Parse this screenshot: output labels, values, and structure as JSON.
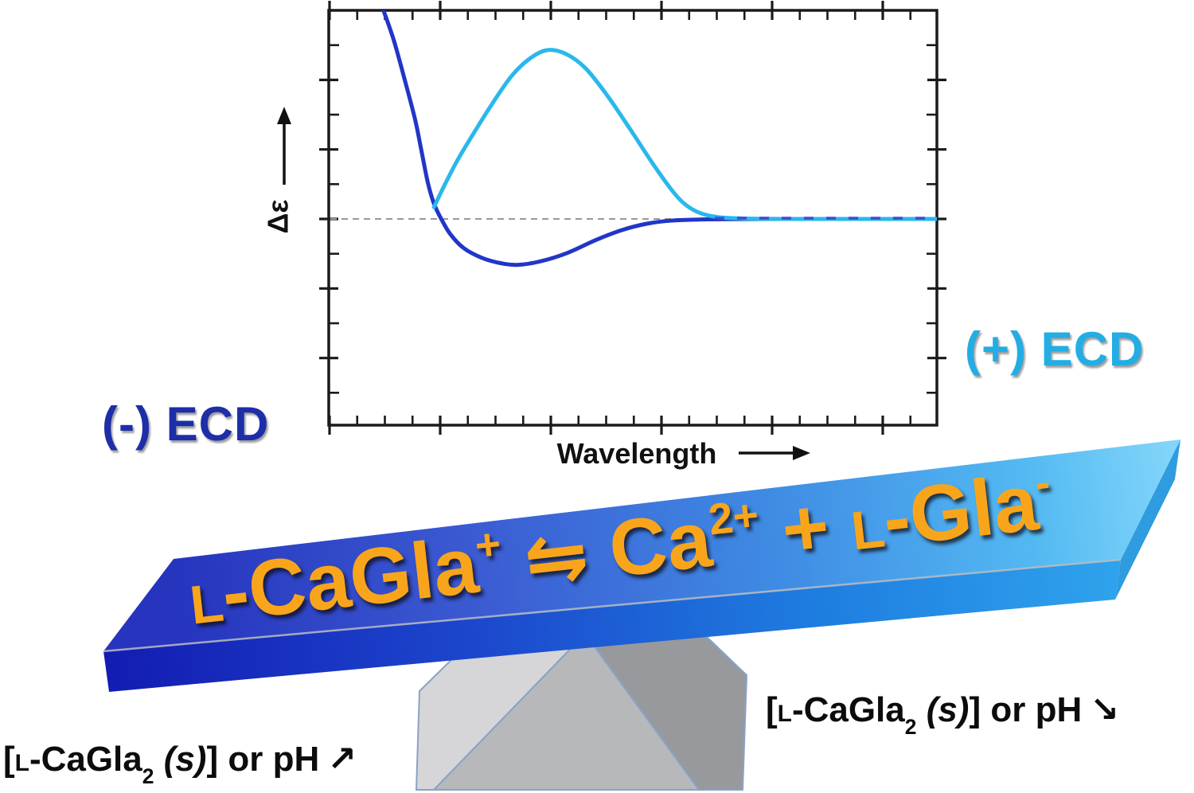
{
  "labels": {
    "y_axis": "Δε",
    "x_axis": "Wavelength",
    "neg_ecd": "(-) ECD",
    "pos_ecd": "(+) ECD"
  },
  "equation": {
    "l_small_1": "L",
    "left_body": "-CaGla",
    "left_charge": "+",
    "arrows": "⇋",
    "ca": "Ca",
    "ca_charge": "2+",
    "plus": "+",
    "l_small_2": "L",
    "right_body": "-Gla",
    "right_charge": "-"
  },
  "caption_left": {
    "bracket_open": "[",
    "l_small": "L",
    "body": "-CaGla",
    "subscript": "2",
    "state": "(s)",
    "tail": "] or pH",
    "arrow": "↗"
  },
  "caption_right": {
    "bracket_open": "[",
    "l_small": "L",
    "body": "-CaGla",
    "subscript": "2",
    "state": "(s)",
    "tail": "] or pH",
    "arrow": "↘"
  },
  "colors": {
    "pos_curve": "#29B8EC",
    "neg_curve": "#2136C8",
    "pos_label": "#22ADE4",
    "neg_label": "#1D2EA8",
    "equation_text": "#F9A51B",
    "beam_dark_blue": "#1A24BE",
    "beam_light_blue": "#5FC8F6",
    "zero_line": "#999999",
    "axis": "#1a1a1a",
    "fulcrum_light": "#D6D6D8",
    "fulcrum_mid": "#B7B8BA",
    "fulcrum_dark": "#98999D"
  },
  "chart_data": {
    "type": "line",
    "title": "",
    "xlabel": "Wavelength",
    "ylabel": "Δε",
    "tick_labels": "none (arbitrary units, unlabeled major/minor ticks on all four axes)",
    "zero_baseline": {
      "dashed": true,
      "color": "#999999"
    },
    "legend_position": "outside plot: (-) ECD lower-left in dark blue, (+) ECD right in cyan",
    "y_units_note": "y expressed in arbitrary Δε units where one major tick = 1 unit; zero at dashed line",
    "x_units_note": "x expressed as fraction 0-1 of the wavelength axis",
    "series": [
      {
        "name": "(-) ECD",
        "color": "#2136C8",
        "points": [
          [
            0.09,
            3.0
          ],
          [
            0.107,
            2.57
          ],
          [
            0.125,
            2.0
          ],
          [
            0.142,
            1.43
          ],
          [
            0.152,
            1.0
          ],
          [
            0.163,
            0.52
          ],
          [
            0.173,
            0.22
          ],
          [
            0.185,
            0.0
          ],
          [
            0.2,
            -0.22
          ],
          [
            0.222,
            -0.42
          ],
          [
            0.252,
            -0.56
          ],
          [
            0.285,
            -0.64
          ],
          [
            0.312,
            -0.66
          ],
          [
            0.348,
            -0.61
          ],
          [
            0.392,
            -0.49
          ],
          [
            0.44,
            -0.3
          ],
          [
            0.482,
            -0.16
          ],
          [
            0.522,
            -0.07
          ],
          [
            0.562,
            -0.025
          ],
          [
            0.625,
            -0.006
          ],
          [
            0.72,
            0.0
          ],
          [
            1.0,
            0.0
          ]
        ]
      },
      {
        "name": "(+) ECD",
        "color": "#29B8EC",
        "points": [
          [
            0.173,
            0.17
          ],
          [
            0.19,
            0.48
          ],
          [
            0.212,
            0.85
          ],
          [
            0.236,
            1.2
          ],
          [
            0.266,
            1.62
          ],
          [
            0.3,
            2.05
          ],
          [
            0.331,
            2.31
          ],
          [
            0.36,
            2.43
          ],
          [
            0.391,
            2.37
          ],
          [
            0.422,
            2.17
          ],
          [
            0.456,
            1.8
          ],
          [
            0.495,
            1.3
          ],
          [
            0.531,
            0.82
          ],
          [
            0.561,
            0.45
          ],
          [
            0.582,
            0.24
          ],
          [
            0.604,
            0.11
          ],
          [
            0.63,
            0.04
          ],
          [
            0.668,
            0.01
          ],
          [
            0.76,
            0.0
          ],
          [
            1.0,
            0.0
          ]
        ]
      }
    ]
  }
}
